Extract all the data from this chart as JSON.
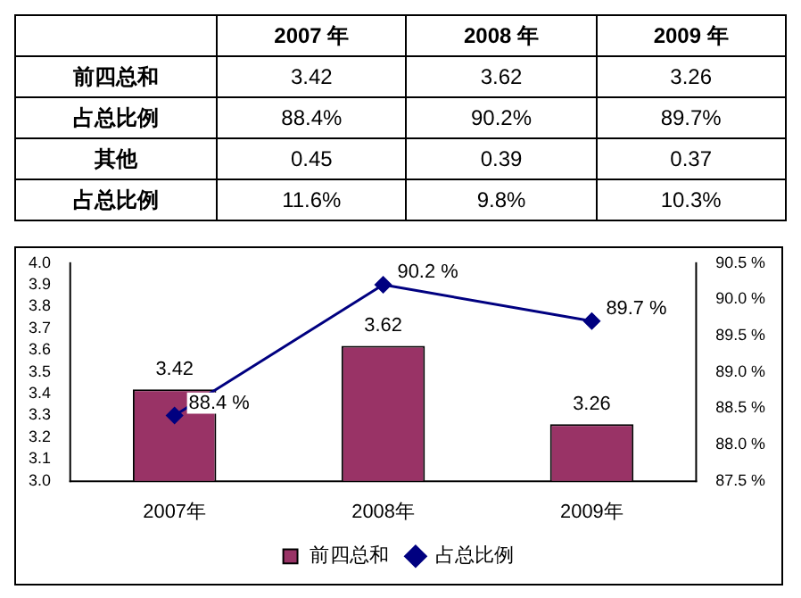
{
  "chart_data": [
    {
      "type": "other",
      "categories": [
        "2007 年",
        "2008 年",
        "2009 年"
      ],
      "data_labels": true,
      "series": [
        {
          "name": "前四总和",
          "values": [
            3.42,
            3.62,
            3.26
          ]
        },
        {
          "name": "占总比例",
          "values": [
            88.4,
            90.2,
            89.7
          ],
          "value_labels": [
            "88.4%",
            "90.2%",
            "89.7%"
          ]
        },
        {
          "name": "其他",
          "values": [
            0.45,
            0.39,
            0.37
          ]
        },
        {
          "name": "占总比例",
          "values": [
            11.6,
            9.8,
            10.3
          ],
          "value_labels": [
            "11.6%",
            "9.8%",
            "10.3%"
          ]
        }
      ]
    },
    {
      "type": "bar",
      "categories": [
        "2007年",
        "2008年",
        "2009年"
      ],
      "grid": false,
      "legend": "bottom",
      "series": [
        {
          "name": "前四总和",
          "color": "#993366",
          "values": [
            3.42,
            3.62,
            3.26
          ],
          "value_labels": [
            "3.42",
            "3.62",
            "3.26"
          ]
        },
        {
          "name": "占总比例",
          "type": "line",
          "axis": "y2",
          "color": "#000080",
          "marker": "diamond",
          "values": [
            88.4,
            90.2,
            89.7
          ],
          "value_labels": [
            "88.4 %",
            "90.2 %",
            "89.7 %"
          ]
        }
      ],
      "ylim": [
        3,
        4
      ],
      "yticks": [
        {
          "value": 3,
          "label": "3.0"
        },
        3.1,
        3.2,
        3.3,
        3.4,
        3.5,
        3.6,
        3.7,
        3.8,
        3.9,
        {
          "value": 4,
          "label": "4.0"
        }
      ],
      "y2lim": [
        87.5,
        90.5
      ],
      "y2ticks": [
        {
          "value": 87.5,
          "label": "87.5 %"
        },
        {
          "value": 88,
          "label": "88.0 %"
        },
        {
          "value": 88.5,
          "label": "88.5 %"
        },
        {
          "value": 89,
          "label": "89.0 %"
        },
        {
          "value": 89.5,
          "label": "89.5 %"
        },
        {
          "value": 90,
          "label": "90.0 %"
        },
        {
          "value": 90.5,
          "label": "90.5 %"
        }
      ]
    }
  ]
}
